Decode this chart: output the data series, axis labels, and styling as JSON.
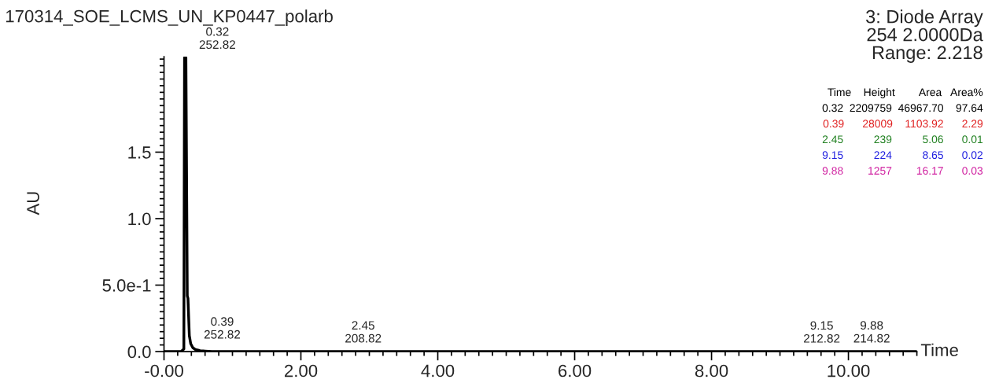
{
  "chart_data": {
    "type": "line",
    "title": "170314_SOE_LCMS_UN_KP0447_polarb",
    "subtitle": "3: Diode Array\n254 2.0000Da\nRange: 2.218",
    "xlabel": "Time",
    "ylabel": "AU",
    "series": [
      {
        "color": "#000000",
        "x": [
          0.0,
          0.25,
          0.29,
          0.3,
          0.32,
          0.34,
          0.35,
          0.37,
          0.39,
          0.42,
          0.46,
          0.52,
          0.6,
          0.7,
          1.0,
          2.45,
          3.1,
          5.0,
          9.15,
          9.88,
          10.2,
          11.0
        ],
        "values": [
          0.0,
          0.0,
          0.02,
          2.21,
          2.21,
          0.42,
          0.4,
          0.12,
          0.06,
          0.03,
          0.015,
          0.008,
          0.004,
          0.0,
          0.0,
          0.001,
          0.0,
          0.0,
          0.0,
          0.001,
          0.0,
          0.0
        ]
      }
    ],
    "xlim": [
      0,
      11
    ],
    "ylim": [
      0,
      2.218
    ],
    "xticks": [
      {
        "value": 0,
        "label": "-0.00"
      },
      {
        "value": 2,
        "label": "2.00"
      },
      {
        "value": 4,
        "label": "4.00"
      },
      {
        "value": 6,
        "label": "6.00"
      },
      {
        "value": 8,
        "label": "8.00"
      },
      {
        "value": 10,
        "label": "10.00"
      }
    ],
    "yticks": [
      {
        "value": 0,
        "label": "0.0"
      },
      {
        "value": 0.5,
        "label": "5.0e-1"
      },
      {
        "value": 1.0,
        "label": "1.0"
      },
      {
        "value": 1.5,
        "label": "1.5"
      }
    ],
    "annotations": [
      {
        "text": "0.32\n252.82",
        "x": 0.32,
        "y": 2.21
      },
      {
        "text": "0.39\n252.82",
        "x": 0.39,
        "y": 0.03
      },
      {
        "text": "2.45\n208.82",
        "x": 2.45,
        "y": 0.001
      },
      {
        "text": "9.15\n212.82",
        "x": 9.15,
        "y": 0.0
      },
      {
        "text": "9.88\n214.82",
        "x": 9.88,
        "y": 0.001
      },
      "Time    Height        Area   Area%",
      "0.32  2209759  46967.70    97.64",
      "0.39      28009    1103.92      2.29",
      "2.45          239          5.06      0.01",
      "9.15          224          8.65      0.02",
      "9.88        1257        16.17      0.03"
    ],
    "grid": false
  }
}
